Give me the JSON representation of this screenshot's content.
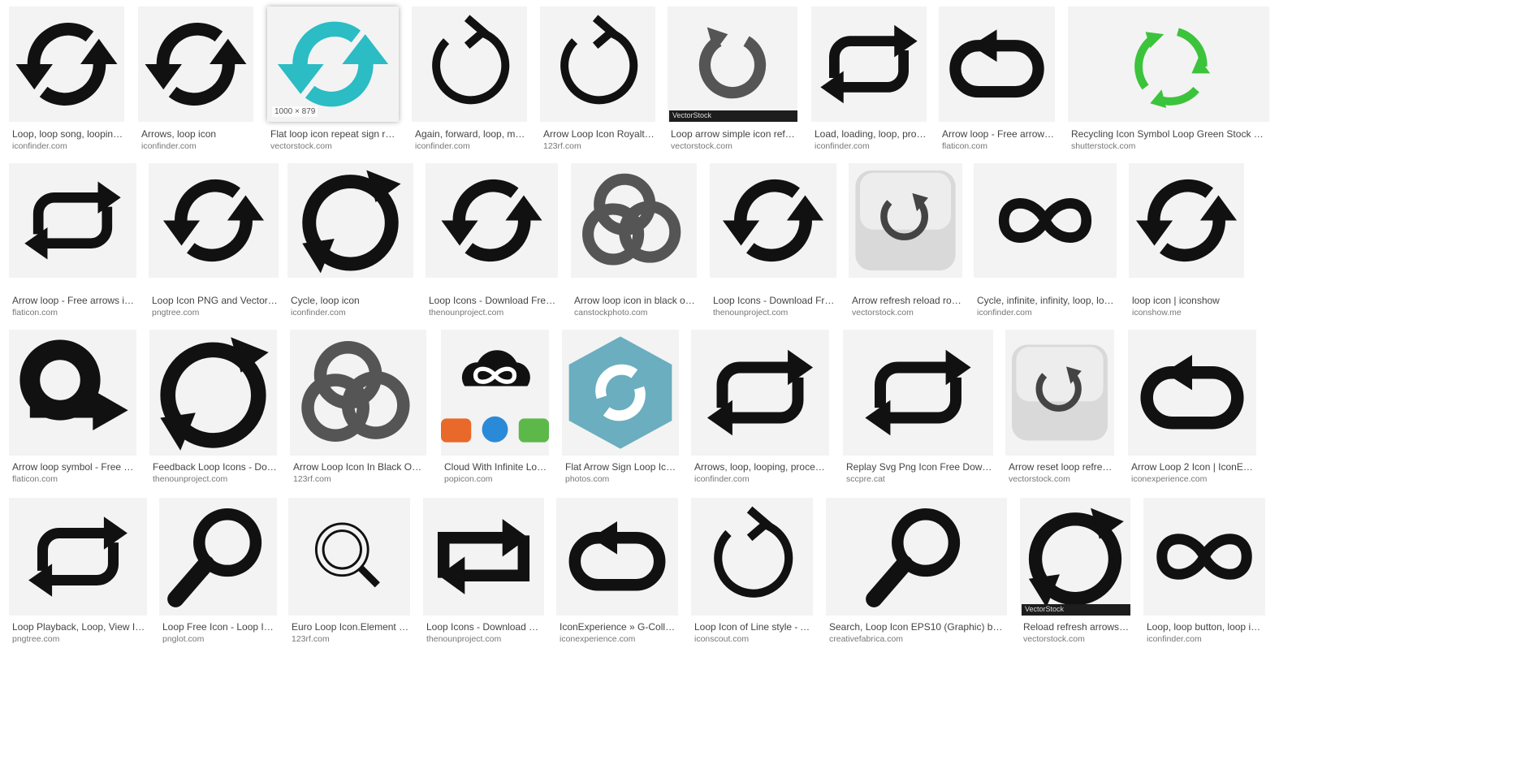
{
  "results": [
    [
      {
        "title": "Loop, loop song, looping, ...",
        "source": "iconfinder.com",
        "icon": "loop-arrows-icon"
      },
      {
        "title": "Arrows, loop icon",
        "source": "iconfinder.com",
        "icon": "loop-arrows-icon"
      },
      {
        "title": "Flat loop icon repeat sign relo...",
        "source": "vectorstock.com",
        "icon": "teal-loop-icon",
        "badge": "1000 × 879",
        "hover": true
      },
      {
        "title": "Again, forward, loop, musi...",
        "source": "iconfinder.com",
        "icon": "circular-arrow-icon"
      },
      {
        "title": "Arrow Loop Icon Royalty Fr...",
        "source": "123rf.com",
        "icon": "circular-arrow-icon"
      },
      {
        "title": "Loop arrow simple icon refres...",
        "source": "vectorstock.com",
        "icon": "reload-icon",
        "watermark": "VectorStock"
      },
      {
        "title": "Load, loading, loop, proce...",
        "source": "iconfinder.com",
        "icon": "repeat-icon"
      },
      {
        "title": "Arrow loop - Free arrows i...",
        "source": "flaticon.com",
        "icon": "loop-back-icon"
      },
      {
        "title": "Recycling Icon Symbol Loop Green Stock Foota...",
        "source": "shutterstock.com",
        "icon": "green-recycle-icon"
      }
    ],
    [
      {
        "title": "Arrow loop - Free arrows icons",
        "source": "flaticon.com",
        "icon": "repeat-icon"
      },
      {
        "title": "Loop Icon PNG and Vector for...",
        "source": "pngtree.com",
        "icon": "loop-arrows-icon"
      },
      {
        "title": "Cycle, loop icon",
        "source": "iconfinder.com",
        "icon": "circle-arrow-icon"
      },
      {
        "title": "Loop Icons - Download Free V...",
        "source": "thenounproject.com",
        "icon": "loop-arrows-icon"
      },
      {
        "title": "Arrow loop icon in black on a ...",
        "source": "canstockphoto.com",
        "icon": "triple-loop-icon"
      },
      {
        "title": "Loop Icons - Download Free ...",
        "source": "thenounproject.com",
        "icon": "loop-arrows-icon"
      },
      {
        "title": "Arrow refresh reload rotat...",
        "source": "vectorstock.com",
        "icon": "button-loop-icon"
      },
      {
        "title": "Cycle, infinite, infinity, loop, loopin...",
        "source": "iconfinder.com",
        "icon": "infinity-icon"
      },
      {
        "title": "loop icon | iconshow",
        "source": "iconshow.me",
        "icon": "loop-arrows-icon"
      }
    ],
    [
      {
        "title": "Arrow loop symbol - Free arro...",
        "source": "flaticon.com",
        "icon": "loop-forward-icon"
      },
      {
        "title": "Feedback Loop Icons - Down...",
        "source": "thenounproject.com",
        "icon": "circle-arrow-icon"
      },
      {
        "title": "Arrow Loop Icon In Black On A W...",
        "source": "123rf.com",
        "icon": "triple-loop-icon"
      },
      {
        "title": "Cloud With Infinite Loop ...",
        "source": "popicon.com",
        "icon": "cloud-infinity-icon"
      },
      {
        "title": "Flat Arrow Sign Loop Icon ...",
        "source": "photos.com",
        "icon": "hexagon-loop-icon"
      },
      {
        "title": "Arrows, loop, looping, process ic...",
        "source": "iconfinder.com",
        "icon": "repeat-icon"
      },
      {
        "title": "Replay Svg Png Icon Free Downloa...",
        "source": "sccpre.cat",
        "icon": "repeat-icon"
      },
      {
        "title": "Arrow reset loop refresh ...",
        "source": "vectorstock.com",
        "icon": "button-reset-icon"
      },
      {
        "title": "Arrow Loop 2 Icon | IconExperie...",
        "source": "iconexperience.com",
        "icon": "loop-back-icon"
      }
    ],
    [
      {
        "title": "Loop Playback, Loop, View Icon ...",
        "source": "pngtree.com",
        "icon": "repeat-icon"
      },
      {
        "title": "Loop Free Icon - Loop Icon...",
        "source": "pnglot.com",
        "icon": "magnifier-icon"
      },
      {
        "title": "Euro Loop Icon.Element Of ...",
        "source": "123rf.com",
        "icon": "euro-magnifier-icon"
      },
      {
        "title": "Loop Icons - Download Fre...",
        "source": "thenounproject.com",
        "icon": "repeat-square-icon"
      },
      {
        "title": "IconExperience » G-Collecti...",
        "source": "iconexperience.com",
        "icon": "loop-back-icon"
      },
      {
        "title": "Loop Icon of Line style - Avai...",
        "source": "iconscout.com",
        "icon": "circular-arrow-icon"
      },
      {
        "title": "Search, Loop Icon EPS10 (Graphic) by Kan...",
        "source": "creativefabrica.com",
        "icon": "magnifier-icon"
      },
      {
        "title": "Reload refresh arrows lo...",
        "source": "vectorstock.com",
        "icon": "circle-arrow-icon",
        "watermark": "VectorStock"
      },
      {
        "title": "Loop, loop button, loop icon,...",
        "source": "iconfinder.com",
        "icon": "infinity-icon"
      }
    ]
  ],
  "colors": {
    "teal": "#2bbcc4",
    "green": "#3cc33c",
    "hexagon": "#6aaebf",
    "orange": "#f07a1a",
    "blue": "#3a36c0",
    "gray": "#555555",
    "cloudOrange": "#e8692a",
    "cloudBlue": "#2a8ad8",
    "cloudGreen": "#5db84a"
  }
}
